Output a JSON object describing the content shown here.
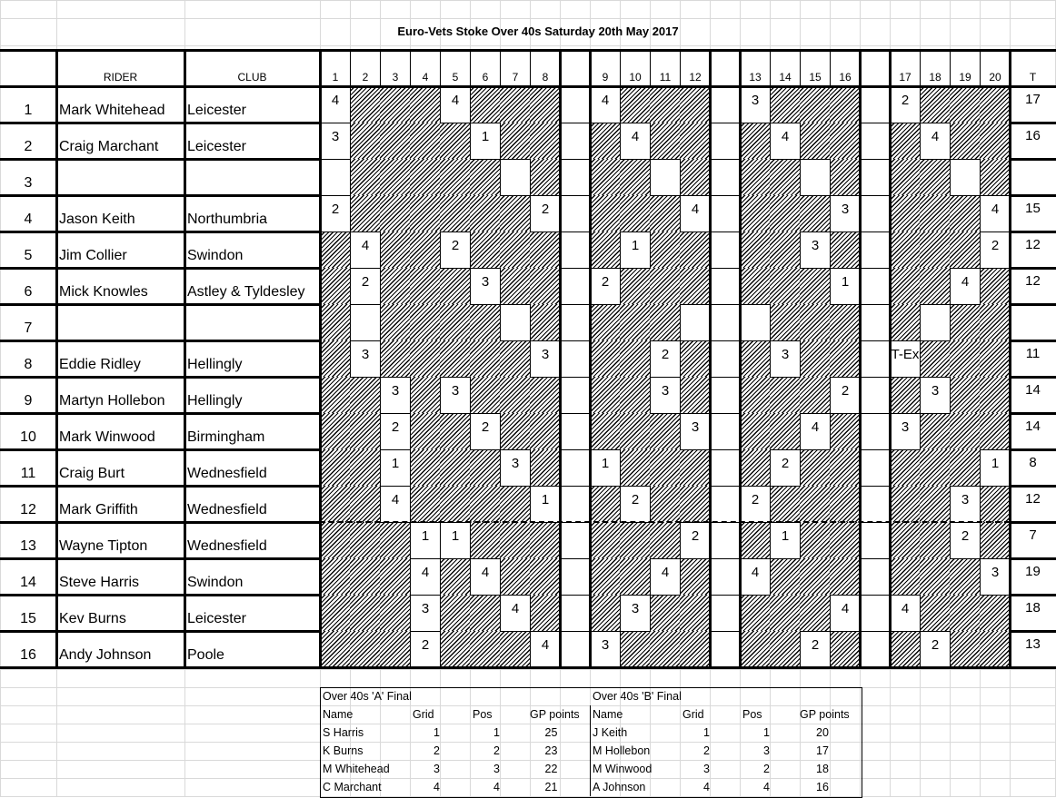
{
  "title": "Euro-Vets Stoke Over 40s Saturday 20th May 2017",
  "headers": {
    "rider": "RIDER",
    "club": "CLUB",
    "total": "T",
    "heats": [
      "1",
      "2",
      "3",
      "4",
      "5",
      "6",
      "7",
      "8",
      "9",
      "10",
      "11",
      "12",
      "13",
      "14",
      "15",
      "16",
      "17",
      "18",
      "19",
      "20"
    ]
  },
  "riders": [
    {
      "no": "1",
      "name": "Mark Whitehead",
      "club": "Leicester",
      "total": "17",
      "results": [
        "4",
        null,
        null,
        null,
        "4",
        null,
        null,
        null,
        "4",
        null,
        null,
        null,
        "3",
        null,
        null,
        null,
        "2",
        null,
        null,
        null
      ]
    },
    {
      "no": "2",
      "name": "Craig Marchant",
      "club": "Leicester",
      "total": "16",
      "results": [
        "3",
        null,
        null,
        null,
        null,
        "1",
        null,
        null,
        null,
        "4",
        null,
        null,
        null,
        "4",
        null,
        null,
        null,
        "4",
        null,
        null
      ]
    },
    {
      "no": "3",
      "name": "",
      "club": "",
      "total": "",
      "results": [
        "",
        null,
        null,
        null,
        null,
        null,
        "",
        null,
        null,
        null,
        "",
        null,
        null,
        null,
        "",
        null,
        null,
        null,
        "",
        null
      ]
    },
    {
      "no": "4",
      "name": "Jason Keith",
      "club": "Northumbria",
      "total": "15",
      "results": [
        "2",
        null,
        null,
        null,
        null,
        null,
        null,
        "2",
        null,
        null,
        null,
        "4",
        null,
        null,
        null,
        "3",
        null,
        null,
        null,
        "4"
      ]
    },
    {
      "no": "5",
      "name": "Jim Collier",
      "club": "Swindon",
      "total": "12",
      "results": [
        null,
        "4",
        null,
        null,
        "2",
        null,
        null,
        null,
        null,
        "1",
        null,
        null,
        null,
        null,
        "3",
        null,
        null,
        null,
        null,
        "2"
      ]
    },
    {
      "no": "6",
      "name": "Mick Knowles",
      "club": "Astley & Tyldesley",
      "total": "12",
      "results": [
        null,
        "2",
        null,
        null,
        null,
        "3",
        null,
        null,
        "2",
        null,
        null,
        null,
        null,
        null,
        null,
        "1",
        null,
        null,
        "4",
        null
      ]
    },
    {
      "no": "7",
      "name": "",
      "club": "",
      "total": "",
      "results": [
        null,
        "",
        null,
        null,
        null,
        null,
        "",
        null,
        null,
        null,
        null,
        "",
        "",
        null,
        null,
        null,
        null,
        "",
        null,
        null
      ]
    },
    {
      "no": "8",
      "name": "Eddie Ridley",
      "club": "Hellingly",
      "total": "11",
      "results": [
        null,
        "3",
        null,
        null,
        null,
        null,
        null,
        "3",
        null,
        null,
        "2",
        null,
        null,
        "3",
        null,
        null,
        "T-Ex",
        null,
        null,
        null
      ]
    },
    {
      "no": "9",
      "name": "Martyn Hollebon",
      "club": "Hellingly",
      "total": "14",
      "results": [
        null,
        null,
        "3",
        null,
        "3",
        null,
        null,
        null,
        null,
        null,
        "3",
        null,
        null,
        null,
        null,
        "2",
        null,
        "3",
        null,
        null
      ]
    },
    {
      "no": "10",
      "name": "Mark Winwood",
      "club": "Birmingham",
      "total": "14",
      "results": [
        null,
        null,
        "2",
        null,
        null,
        "2",
        null,
        null,
        null,
        null,
        null,
        "3",
        null,
        null,
        "4",
        null,
        "3",
        null,
        null,
        null
      ]
    },
    {
      "no": "11",
      "name": "Craig Burt",
      "club": "Wednesfield",
      "total": "8",
      "results": [
        null,
        null,
        "1",
        null,
        null,
        null,
        "3",
        null,
        "1",
        null,
        null,
        null,
        null,
        "2",
        null,
        null,
        null,
        null,
        null,
        "1"
      ]
    },
    {
      "no": "12",
      "name": "Mark Griffith",
      "club": "Wednesfield",
      "total": "12",
      "results": [
        null,
        null,
        "4",
        null,
        null,
        null,
        null,
        "1",
        null,
        "2",
        null,
        null,
        "2",
        null,
        null,
        null,
        null,
        null,
        "3",
        null
      ]
    },
    {
      "no": "13",
      "name": "Wayne Tipton",
      "club": "Wednesfield",
      "total": "7",
      "results": [
        null,
        null,
        null,
        "1",
        "1",
        null,
        null,
        null,
        null,
        null,
        null,
        "2",
        null,
        "1",
        null,
        null,
        null,
        null,
        "2",
        null
      ]
    },
    {
      "no": "14",
      "name": "Steve Harris",
      "club": "Swindon",
      "total": "19",
      "results": [
        null,
        null,
        null,
        "4",
        null,
        "4",
        null,
        null,
        null,
        null,
        "4",
        null,
        "4",
        null,
        null,
        null,
        null,
        null,
        null,
        "3"
      ]
    },
    {
      "no": "15",
      "name": "Kev Burns",
      "club": "Leicester",
      "total": "18",
      "results": [
        null,
        null,
        null,
        "3",
        null,
        null,
        "4",
        null,
        null,
        "3",
        null,
        null,
        null,
        null,
        null,
        "4",
        "4",
        null,
        null,
        null
      ]
    },
    {
      "no": "16",
      "name": "Andy Johnson",
      "club": "Poole",
      "total": "13",
      "results": [
        null,
        null,
        null,
        "2",
        null,
        null,
        null,
        "4",
        "3",
        null,
        null,
        null,
        null,
        null,
        "2",
        null,
        null,
        "2",
        null,
        null
      ]
    }
  ],
  "finals": [
    {
      "title": "Over 40s 'A' Final",
      "columns": [
        "Name",
        "Grid",
        "Pos",
        "GP points"
      ],
      "rows": [
        [
          "S Harris",
          "1",
          "1",
          "25"
        ],
        [
          "K Burns",
          "2",
          "2",
          "23"
        ],
        [
          "M Whitehead",
          "3",
          "3",
          "22"
        ],
        [
          "C Marchant",
          "4",
          "4",
          "21"
        ]
      ]
    },
    {
      "title": "Over 40s 'B' Final",
      "columns": [
        "Name",
        "Grid",
        "Pos",
        "GP points"
      ],
      "rows": [
        [
          "J Keith",
          "1",
          "1",
          "20"
        ],
        [
          "M Hollebon",
          "2",
          "3",
          "17"
        ],
        [
          "M Winwood",
          "3",
          "2",
          "18"
        ],
        [
          "A Johnson",
          "4",
          "4",
          "16"
        ]
      ]
    }
  ]
}
